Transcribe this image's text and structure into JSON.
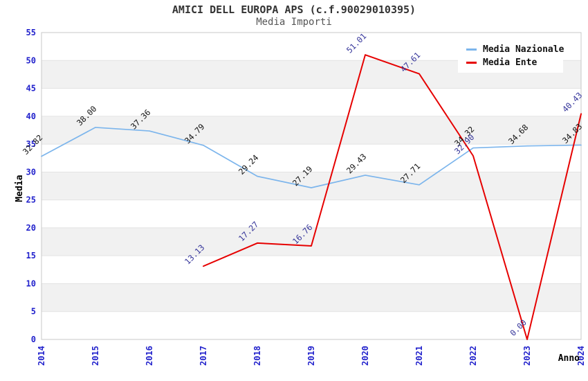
{
  "header": {
    "title": "AMICI DELL EUROPA APS (c.f.90029010395)",
    "subtitle": "Media Importi"
  },
  "chart_data": {
    "type": "line",
    "title": "AMICI DELL EUROPA APS (c.f.90029010395)",
    "subtitle": "Media Importi",
    "x": [
      "2014",
      "2015",
      "2016",
      "2017",
      "2018",
      "2019",
      "2020",
      "2021",
      "2022",
      "2023",
      "2024"
    ],
    "xlabel": "Anno",
    "ylabel": "Media",
    "ylim": [
      0,
      55
    ],
    "ytick_step": 5,
    "grid": "horizontal-alternating-bands",
    "legend_position": "top-right-inside",
    "point_labels_rotation_deg": -45,
    "series": [
      {
        "name": "Media Nazionale",
        "color": "#7cb5ec",
        "label_color": "#111111",
        "stroke_width": 1.7,
        "values": [
          32.82,
          38.0,
          37.36,
          34.79,
          29.24,
          27.19,
          29.43,
          27.71,
          34.32,
          34.68,
          34.83
        ]
      },
      {
        "name": "Media Ente",
        "color": "#e60000",
        "label_color": "#333399",
        "stroke_width": 2,
        "values": [
          null,
          null,
          null,
          13.13,
          17.27,
          16.76,
          51.01,
          47.61,
          32.9,
          0.0,
          40.43
        ]
      }
    ],
    "colors": {
      "tick_label": "#2222cc",
      "band_fill": "#f1f1f1",
      "grid_line": "#e2e2e2",
      "plot_border": "#c8c8c8",
      "title": "#333333",
      "subtitle": "#555555",
      "axis_label": "#000000",
      "background": "#ffffff"
    }
  }
}
